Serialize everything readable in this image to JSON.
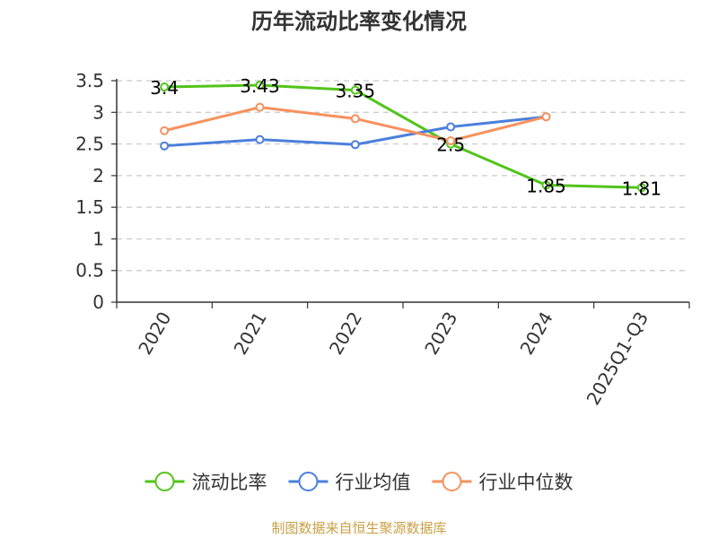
{
  "chart_data": {
    "type": "line",
    "title": "历年流动比率变化情况",
    "categories": [
      "2020",
      "2021",
      "2022",
      "2023",
      "2024",
      "2025Q1-Q3"
    ],
    "ylim": [
      0,
      3.5
    ],
    "yticks": [
      "0",
      "0.5",
      "1",
      "1.5",
      "2",
      "2.5",
      "3",
      "3.5"
    ],
    "grid": true,
    "legend_position": "bottom",
    "series": [
      {
        "name": "流动比率",
        "color": "#52c41a",
        "values": [
          3.4,
          3.43,
          3.35,
          2.5,
          1.85,
          1.81
        ],
        "labels": [
          "3.4",
          "3.43",
          "3.35",
          "2.5",
          "1.85",
          "1.81"
        ]
      },
      {
        "name": "行业均值",
        "color": "#4b7fdc",
        "values": [
          2.47,
          2.57,
          2.49,
          2.77,
          2.93,
          null
        ]
      },
      {
        "name": "行业中位数",
        "color": "#f7915e",
        "values": [
          2.71,
          3.08,
          2.9,
          2.55,
          2.93,
          null
        ]
      }
    ]
  },
  "footer": {
    "source": "制图数据来自恒生聚源数据库"
  }
}
